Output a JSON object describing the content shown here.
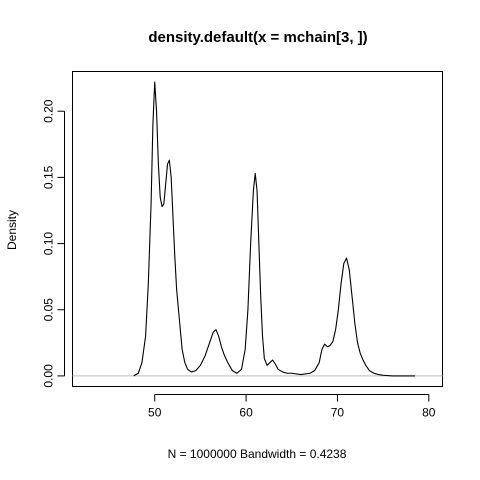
{
  "chart_data": {
    "type": "line",
    "title": "density.default(x = mchain[3, ])",
    "xlabel": "N = 1000000   Bandwidth = 0.4238",
    "ylabel": "Density",
    "xlim": [
      41,
      81.5
    ],
    "ylim": [
      -0.008,
      0.23
    ],
    "x_ticks": [
      50,
      60,
      70,
      80
    ],
    "x_tick_labels": [
      "50",
      "60",
      "70",
      "80"
    ],
    "y_ticks": [
      0.0,
      0.05,
      0.1,
      0.15,
      0.2
    ],
    "y_tick_labels": [
      "0.00",
      "0.05",
      "0.10",
      "0.15",
      "0.20"
    ],
    "zero_line": true,
    "grid": false,
    "series": [
      {
        "x": [
          47.7,
          48.2,
          48.6,
          49.0,
          49.3,
          49.6,
          49.8,
          50.0,
          50.2,
          50.4,
          50.6,
          50.8,
          51.0,
          51.2,
          51.4,
          51.6,
          51.8,
          52.0,
          52.2,
          52.4,
          52.6,
          52.8,
          53.0,
          53.3,
          53.6,
          54.0,
          54.5,
          55.0,
          55.5,
          56.0,
          56.4,
          56.7,
          57.0,
          57.3,
          57.6,
          58.0,
          58.5,
          59.0,
          59.5,
          59.9,
          60.2,
          60.5,
          60.8,
          61.0,
          61.2,
          61.4,
          61.6,
          61.8,
          62.0,
          62.3,
          62.6,
          62.9,
          63.2,
          63.5,
          64.0,
          64.5,
          65.0,
          66.0,
          67.0,
          67.5,
          68.0,
          68.3,
          68.6,
          68.9,
          69.2,
          69.5,
          69.8,
          70.1,
          70.4,
          70.7,
          71.0,
          71.3,
          71.6,
          71.9,
          72.2,
          72.5,
          72.8,
          73.1,
          73.5,
          74.0,
          74.5,
          75.0,
          76.0,
          77.0,
          78.5
        ],
        "y": [
          0.0,
          0.002,
          0.01,
          0.03,
          0.07,
          0.13,
          0.19,
          0.222,
          0.2,
          0.16,
          0.135,
          0.128,
          0.13,
          0.145,
          0.16,
          0.163,
          0.15,
          0.12,
          0.09,
          0.065,
          0.05,
          0.035,
          0.02,
          0.01,
          0.005,
          0.003,
          0.004,
          0.008,
          0.015,
          0.025,
          0.033,
          0.035,
          0.03,
          0.022,
          0.016,
          0.01,
          0.004,
          0.002,
          0.005,
          0.02,
          0.05,
          0.1,
          0.14,
          0.153,
          0.14,
          0.1,
          0.06,
          0.03,
          0.013,
          0.008,
          0.01,
          0.012,
          0.009,
          0.005,
          0.003,
          0.002,
          0.002,
          0.001,
          0.002,
          0.004,
          0.01,
          0.02,
          0.024,
          0.022,
          0.023,
          0.026,
          0.035,
          0.05,
          0.07,
          0.085,
          0.089,
          0.08,
          0.06,
          0.04,
          0.025,
          0.017,
          0.012,
          0.008,
          0.004,
          0.002,
          0.001,
          0.0005,
          0.0,
          0.0,
          0.0
        ]
      }
    ]
  }
}
